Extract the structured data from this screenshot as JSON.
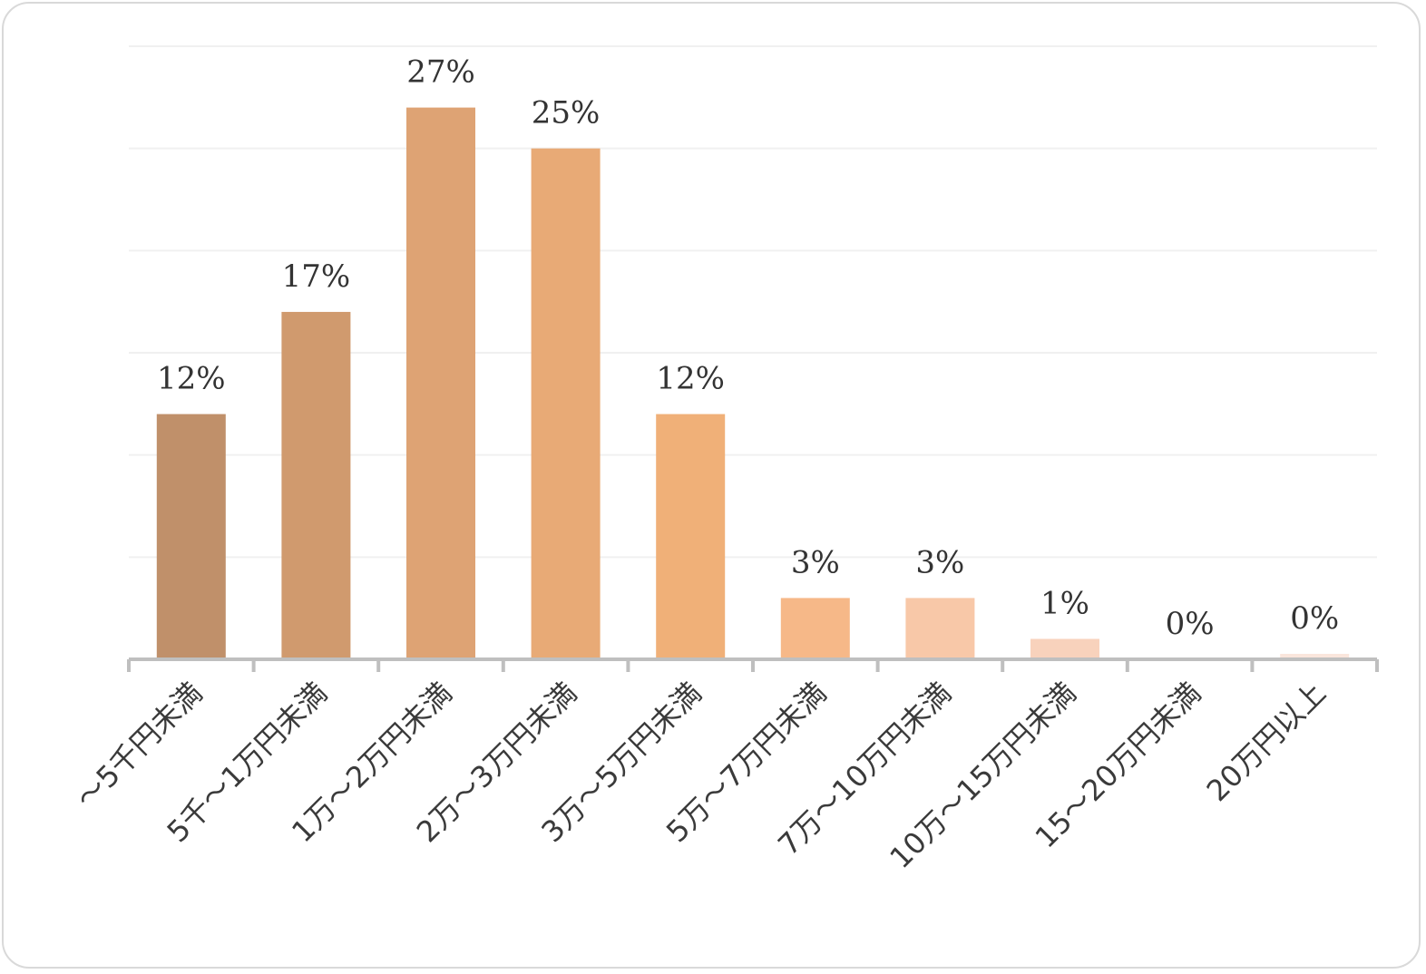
{
  "chart_data": {
    "type": "bar",
    "title": "",
    "xlabel": "",
    "ylabel": "",
    "ylim": [
      0,
      30
    ],
    "grid": true,
    "legend": "none",
    "categories": [
      "〜5千円未満",
      "5千〜1万円未満",
      "1万〜2万円未満",
      "2万〜3万円未満",
      "3万〜5万円未満",
      "5万〜7万円未満",
      "7万〜10万円未満",
      "10万〜15万円未満",
      "15〜20万円未満",
      "20万円以上"
    ],
    "values": [
      12,
      17,
      27,
      25,
      12,
      3,
      3,
      1,
      0,
      0
    ],
    "value_labels": [
      "12%",
      "17%",
      "27%",
      "25%",
      "12%",
      "3%",
      "3%",
      "1%",
      "0%",
      "0%"
    ],
    "bar_colors": [
      "#c0906a",
      "#d09a6e",
      "#dea374",
      "#e8aa76",
      "#f0b078",
      "#f6b888",
      "#f8c8a8",
      "#f8d2bc",
      "#fae0d2",
      "#fae6dc"
    ],
    "axis_color": "#bfbfbf",
    "grid_color": "#f0f0f0"
  }
}
